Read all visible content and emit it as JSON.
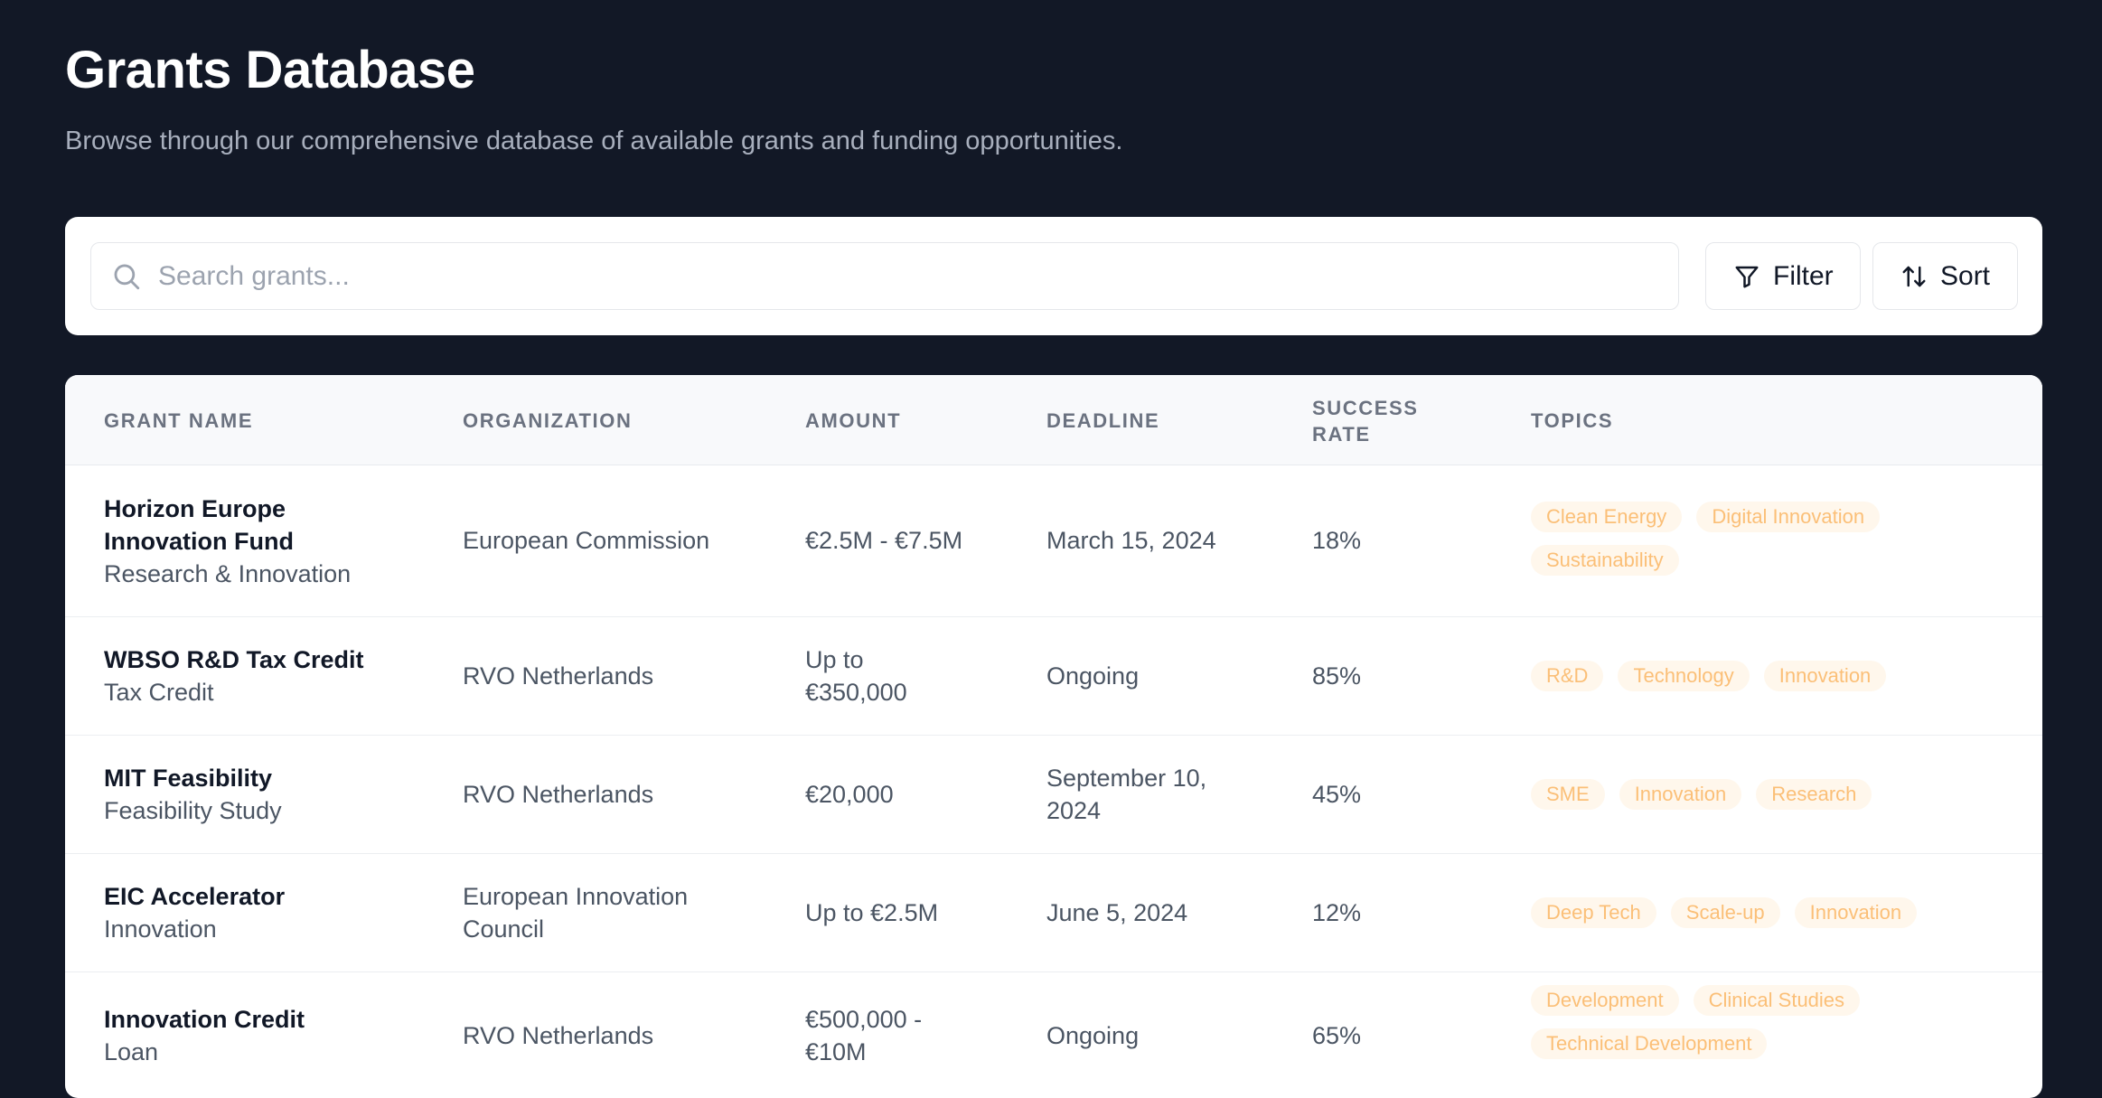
{
  "page": {
    "title": "Grants Database",
    "subtitle": "Browse through our comprehensive database of available grants and funding opportunities."
  },
  "toolbar": {
    "search_placeholder": "Search grants...",
    "search_icon": "search-icon",
    "filter_label": "Filter",
    "filter_icon": "filter-icon",
    "sort_label": "Sort",
    "sort_icon": "sort-arrows-icon"
  },
  "table": {
    "headers": {
      "grant_name": "GRANT NAME",
      "organization": "ORGANIZATION",
      "amount": "AMOUNT",
      "deadline": "DEADLINE",
      "success_rate_1": "SUCCESS",
      "success_rate_2": "RATE",
      "topics": "TOPICS"
    },
    "rows": [
      {
        "name": "Horizon Europe Innovation Fund",
        "type": "Research & Innovation",
        "organization": "European Commission",
        "amount": "€2.5M - €7.5M",
        "deadline": "March 15, 2024",
        "success_rate": "18%",
        "topics": [
          "Clean Energy",
          "Digital Innovation",
          "Sustainability"
        ]
      },
      {
        "name": "WBSO R&D Tax Credit",
        "type": "Tax Credit",
        "organization": "RVO Netherlands",
        "amount": "Up to €350,000",
        "deadline": "Ongoing",
        "success_rate": "85%",
        "topics": [
          "R&D",
          "Technology",
          "Innovation"
        ]
      },
      {
        "name": "MIT Feasibility",
        "type": "Feasibility Study",
        "organization": "RVO Netherlands",
        "amount": "€20,000",
        "deadline": "September 10, 2024",
        "success_rate": "45%",
        "topics": [
          "SME",
          "Innovation",
          "Research"
        ]
      },
      {
        "name": "EIC Accelerator",
        "type": "Innovation",
        "organization": "European Innovation Council",
        "amount": "Up to €2.5M",
        "deadline": "June 5, 2024",
        "success_rate": "12%",
        "topics": [
          "Deep Tech",
          "Scale-up",
          "Innovation"
        ]
      },
      {
        "name": "Innovation Credit",
        "type": "Loan",
        "organization": "RVO Netherlands",
        "amount": "€500,000 - €10M",
        "deadline": "Ongoing",
        "success_rate": "65%",
        "topics": [
          "Development",
          "Clinical Studies",
          "Technical Development"
        ]
      }
    ]
  },
  "colors": {
    "background": "#121826",
    "tag_bg": "#fff7ec",
    "tag_text": "#fbbf77"
  }
}
